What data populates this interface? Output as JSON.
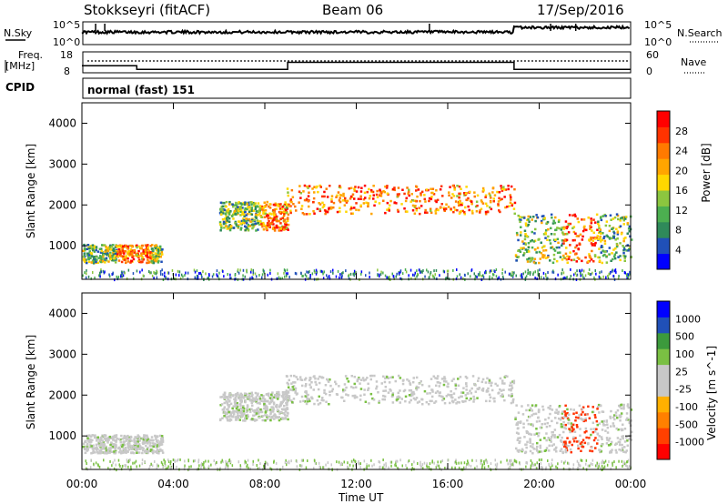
{
  "header": {
    "station": "Stokkseyri (fitACF)",
    "beam": "Beam 06",
    "date": "17/Sep/2016"
  },
  "strip": {
    "nsky_label": "N.Sky",
    "nsearch_label": "N.Search",
    "noise_ticks": [
      "10^5",
      "10^0"
    ],
    "freq_label_1": "Freq.",
    "freq_label_2": "[MHz]",
    "freq_ticks": [
      "18",
      "8"
    ],
    "nave_label": "Nave",
    "nave_ticks": [
      "60",
      "0"
    ],
    "cpid_label": "CPID",
    "cpid_value": "normal (fast) 151"
  },
  "power_panel": {
    "ylabel": "Slant Range [km]",
    "cbar_label": "Power [dB]",
    "cbar_ticks": [
      "28",
      "24",
      "20",
      "16",
      "12",
      "8",
      "4"
    ],
    "cbar_colors": [
      "#0000ff",
      "#2050b8",
      "#2f8a5a",
      "#4caf50",
      "#8cc63f",
      "#ffd700",
      "#ffa500",
      "#ff7a00",
      "#ff3300",
      "#ff0000"
    ]
  },
  "velocity_panel": {
    "ylabel": "Slant Range [km]",
    "cbar_label": "Velocity [m s^-1]",
    "cbar_ticks": [
      "1000",
      "500",
      "100",
      "25",
      "-25",
      "-100",
      "-500",
      "-1000"
    ],
    "cbar_colors": [
      "#ff0000",
      "#ff4000",
      "#ff8000",
      "#ffb000",
      "#c8c8c8",
      "#c8c8c8",
      "#7ac043",
      "#3c9a3c",
      "#2050b8",
      "#0000ff"
    ]
  },
  "xaxis": {
    "label": "Time UT",
    "ticks": [
      "00:00",
      "04:00",
      "08:00",
      "12:00",
      "16:00",
      "20:00",
      "00:00"
    ]
  },
  "chart_data": {
    "type": "heatmap",
    "x_range_hours": [
      0,
      24
    ],
    "y_range_km": [
      180,
      4500
    ],
    "y_ticks": [
      1000,
      2000,
      3000,
      4000
    ],
    "power_range_db": [
      0,
      30
    ],
    "velocity_range": [
      -1000,
      1000
    ],
    "nave_steps": [
      {
        "t0": 0,
        "t1": 2.4,
        "value": 20
      },
      {
        "t0": 2.4,
        "t1": 9,
        "value": 10
      },
      {
        "t0": 9,
        "t1": 18.9,
        "value": 30
      },
      {
        "t0": 18.9,
        "t1": 24,
        "value": 10
      }
    ],
    "nsky_level": [
      {
        "t0": 0,
        "t1": 18.9,
        "value": 0.55
      },
      {
        "t0": 18.9,
        "t1": 24,
        "value": 0.75
      }
    ]
  }
}
